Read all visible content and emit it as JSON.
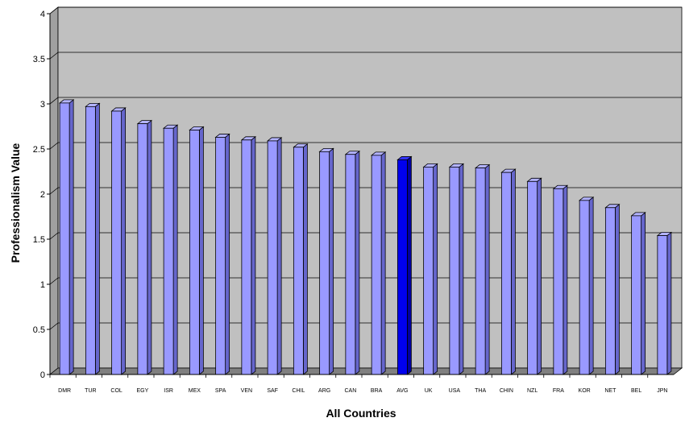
{
  "chart_data": {
    "type": "bar",
    "categories": [
      "DMR",
      "TUR",
      "COL",
      "EGY",
      "ISR",
      "MEX",
      "SPA",
      "VEN",
      "SAF",
      "CHIL",
      "ARG",
      "CAN",
      "BRA",
      "AVG",
      "UK",
      "USA",
      "THA",
      "CHIN",
      "NZL",
      "FRA",
      "KOR",
      "NET",
      "BEL",
      "JPN"
    ],
    "values": [
      3.01,
      2.97,
      2.92,
      2.78,
      2.73,
      2.71,
      2.63,
      2.6,
      2.59,
      2.52,
      2.47,
      2.44,
      2.43,
      2.38,
      2.3,
      2.3,
      2.29,
      2.24,
      2.14,
      2.06,
      1.93,
      1.85,
      1.76,
      1.54
    ],
    "highlight_category": "AVG",
    "xlabel": "All Countries",
    "ylabel": "Professionalism Value",
    "ylim": [
      0,
      4
    ],
    "yticks": [
      "0",
      "0.5",
      "1",
      "1.5",
      "2",
      "2.5",
      "3",
      "3.5",
      "4"
    ],
    "grid": true,
    "colors": {
      "bar_fill": "#9999ff",
      "bar_highlight": "#0000ee",
      "wall": "#c0c0c0",
      "floor": "#808080"
    }
  }
}
